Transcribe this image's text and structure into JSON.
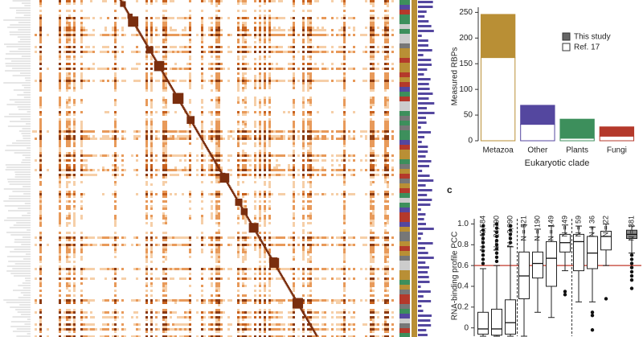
{
  "chart_data": [
    {
      "type": "bar",
      "y_label": "Measured RBPs",
      "x_label": "Eukaryotic clade",
      "categories": [
        "Metazoa",
        "Other",
        "Plants",
        "Fungi"
      ],
      "category_colors": [
        "#b98f35",
        "#54479f",
        "#3d8f5c",
        "#b4392b"
      ],
      "series": [
        {
          "name": "Ref. 17",
          "color": "#ffffff",
          "values": [
            162,
            32,
            5,
            9
          ]
        },
        {
          "name": "This study",
          "color": "#666666",
          "values": [
            84,
            37,
            37,
            18
          ]
        }
      ],
      "stacked": true,
      "legend": "upper right",
      "ylim": [
        0,
        260
      ],
      "yticks": [
        0,
        50,
        100,
        150,
        200,
        250
      ]
    },
    {
      "type": "box",
      "panel_label": "c",
      "y_label": "RNA-binding profile PCC",
      "categories": [
        "N = 42,584",
        "N = 24,790",
        "N = 3,990",
        "N = 521",
        "N = 190",
        "N = 149",
        "N = 49",
        "N = 59",
        "N = 36",
        "N = 22",
        "N = 381"
      ],
      "colors": [
        "#ffffff",
        "#ffffff",
        "#ffffff",
        "#ffffff",
        "#ffffff",
        "#ffffff",
        "#ffffff",
        "#ffffff",
        "#ffffff",
        "#ffffff",
        "#888888"
      ],
      "boxes": [
        {
          "whislo": -0.08,
          "q1": -0.06,
          "med": -0.01,
          "q3": 0.15,
          "whishi": 0.57,
          "fliers": [
            0.62,
            0.66,
            0.7,
            0.74,
            0.78,
            0.82,
            0.86,
            0.9,
            0.94,
            0.98
          ]
        },
        {
          "whislo": -0.08,
          "q1": -0.07,
          "med": -0.01,
          "q3": 0.18,
          "whishi": 0.6,
          "fliers": [
            0.64,
            0.68,
            0.72,
            0.76,
            0.8,
            0.84,
            0.88,
            0.92,
            0.96,
            1.0
          ]
        },
        {
          "whislo": -0.08,
          "q1": -0.06,
          "med": 0.05,
          "q3": 0.27,
          "whishi": 0.78,
          "fliers": [
            0.82,
            0.86,
            0.9,
            0.94,
            0.98
          ]
        },
        {
          "whislo": -0.08,
          "q1": 0.28,
          "med": 0.5,
          "q3": 0.73,
          "whishi": 0.99
        },
        {
          "whislo": 0.15,
          "q1": 0.48,
          "med": 0.62,
          "q3": 0.73,
          "whishi": 0.95
        },
        {
          "whislo": 0.1,
          "q1": 0.4,
          "med": 0.67,
          "q3": 0.83,
          "whishi": 0.98
        },
        {
          "whislo": 0.55,
          "q1": 0.73,
          "med": 0.82,
          "q3": 0.9,
          "whishi": 0.99,
          "fliers": [
            0.35,
            0.32
          ]
        },
        {
          "whislo": 0.25,
          "q1": 0.55,
          "med": 0.83,
          "q3": 0.9,
          "whishi": 0.98
        },
        {
          "whislo": 0.25,
          "q1": 0.57,
          "med": 0.72,
          "q3": 0.88,
          "whishi": 0.97,
          "fliers": [
            0.15,
            0.12,
            -0.02
          ]
        },
        {
          "whislo": 0.6,
          "q1": 0.75,
          "med": 0.88,
          "q3": 0.93,
          "whishi": 1.0,
          "fliers": [
            0.28
          ]
        },
        {
          "whislo": 0.72,
          "q1": 0.86,
          "med": 0.9,
          "q3": 0.94,
          "whishi": 0.98,
          "fliers": [
            0.46,
            0.5,
            0.54,
            0.58,
            0.62,
            0.66,
            0.7,
            0.38
          ]
        }
      ],
      "reference_line": 0.6,
      "reference_color": "#c0392b",
      "ylim": [
        -0.08,
        1.05
      ],
      "yticks": [
        0,
        {
          "value": 0.2,
          "label": "0.2"
        },
        {
          "value": 0.4,
          "label": "0.4"
        },
        {
          "value": 0.6,
          "label": "0.6"
        },
        {
          "value": 0.8,
          "label": "0.8"
        },
        {
          "value": 1.0,
          "label": "1.0"
        }
      ]
    }
  ]
}
